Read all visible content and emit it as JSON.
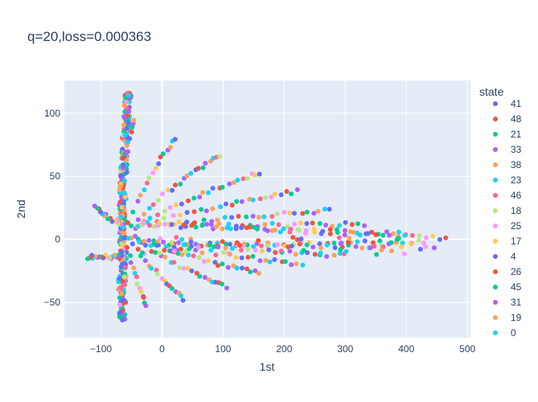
{
  "chart_data": {
    "type": "scatter",
    "title": "q=20,loss=0.000363",
    "xlabel": "1st",
    "ylabel": "2nd",
    "xlim": [
      -160,
      505
    ],
    "ylim": [
      -78,
      126
    ],
    "x_ticks": [
      -100,
      0,
      100,
      200,
      300,
      400,
      500
    ],
    "x_tick_labels": [
      "−100",
      "0",
      "100",
      "200",
      "300",
      "400",
      "500"
    ],
    "y_ticks": [
      -50,
      0,
      50,
      100
    ],
    "y_tick_labels": [
      "−50",
      "0",
      "50",
      "100"
    ],
    "grid": true,
    "legend": {
      "title": "state",
      "placement": "right",
      "entries": [
        {
          "label": "41",
          "color": "#636efa"
        },
        {
          "label": "48",
          "color": "#EF553B"
        },
        {
          "label": "21",
          "color": "#00cc96"
        },
        {
          "label": "33",
          "color": "#ab63fa"
        },
        {
          "label": "38",
          "color": "#FFA15A"
        },
        {
          "label": "23",
          "color": "#19d3f3"
        },
        {
          "label": "46",
          "color": "#FF6692"
        },
        {
          "label": "18",
          "color": "#B6E880"
        },
        {
          "label": "25",
          "color": "#FF97FF"
        },
        {
          "label": "17",
          "color": "#FECB52"
        },
        {
          "label": "4",
          "color": "#636efa"
        },
        {
          "label": "26",
          "color": "#EF553B"
        },
        {
          "label": "45",
          "color": "#00cc96"
        },
        {
          "label": "31",
          "color": "#ab63fa"
        },
        {
          "label": "19",
          "color": "#FFA15A"
        },
        {
          "label": "0",
          "color": "#19d3f3"
        }
      ]
    },
    "series_description": "Points emanate from a cluster near (-65, -15..120) along fan-shaped curves reaching x≈465",
    "rays": [
      {
        "end": [
          20,
          80
        ],
        "n": 16
      },
      {
        "end": [
          95,
          67
        ],
        "n": 22
      },
      {
        "end": [
          160,
          53
        ],
        "n": 24
      },
      {
        "end": [
          220,
          38
        ],
        "n": 26
      },
      {
        "end": [
          275,
          23
        ],
        "n": 28
      },
      {
        "end": [
          330,
          12
        ],
        "n": 30
      },
      {
        "end": [
          400,
          5
        ],
        "n": 32
      },
      {
        "end": [
          465,
          1
        ],
        "n": 36
      },
      {
        "end": [
          430,
          -2
        ],
        "n": 32
      },
      {
        "end": [
          360,
          -6
        ],
        "n": 30
      },
      {
        "end": [
          300,
          -13
        ],
        "n": 28
      },
      {
        "end": [
          230,
          -20
        ],
        "n": 26
      },
      {
        "end": [
          160,
          -27
        ],
        "n": 24
      },
      {
        "end": [
          105,
          -38
        ],
        "n": 22
      },
      {
        "end": [
          35,
          -47
        ],
        "n": 18
      },
      {
        "end": [
          -25,
          -53
        ],
        "n": 14
      }
    ],
    "extra_branches": [
      {
        "start": [
          -65,
          -14
        ],
        "end": [
          -122,
          -14
        ],
        "n": 18
      },
      {
        "start": [
          -65,
          10
        ],
        "end": [
          -110,
          25
        ],
        "n": 14
      },
      {
        "start": [
          -65,
          60
        ],
        "end": [
          -45,
          95
        ],
        "n": 10
      }
    ]
  }
}
